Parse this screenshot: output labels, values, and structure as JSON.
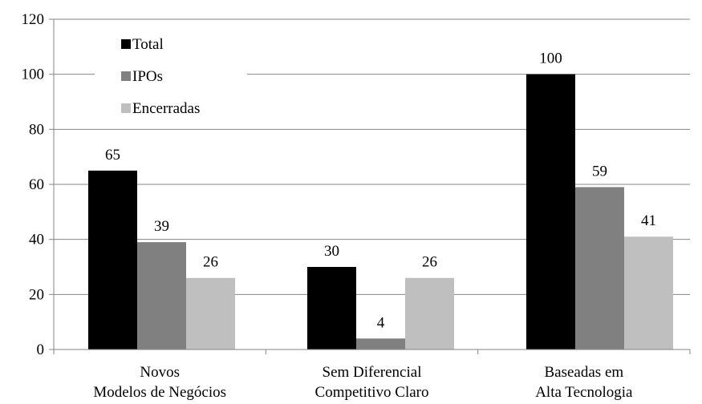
{
  "chart_data": {
    "type": "bar",
    "categories": [
      [
        "Novos",
        "Modelos de Negócios"
      ],
      [
        "Sem Diferencial",
        "Competitivo Claro"
      ],
      [
        "Baseadas em",
        "Alta Tecnologia"
      ]
    ],
    "series": [
      {
        "name": "Total",
        "values": [
          65,
          30,
          100
        ]
      },
      {
        "name": "IPOs",
        "values": [
          39,
          4,
          59
        ]
      },
      {
        "name": "Encerradas",
        "values": [
          26,
          26,
          41
        ]
      }
    ],
    "data_labels": [
      [
        "65",
        "39",
        "26"
      ],
      [
        "30",
        "4",
        "26"
      ],
      [
        "100",
        "59",
        "41"
      ]
    ],
    "ylim": [
      0,
      120
    ],
    "yticks": [
      0,
      20,
      40,
      60,
      80,
      100,
      120
    ],
    "ytick_labels": [
      "0",
      "20",
      "40",
      "60",
      "80",
      "100",
      "120"
    ],
    "grid": true,
    "legend_position": "top-left",
    "colors": {
      "Total": "#000000",
      "IPOs": "#808080",
      "Encerradas": "#bfbfbf",
      "grid": "#868686",
      "axis": "#868686"
    },
    "title": "",
    "xlabel": "",
    "ylabel": ""
  }
}
